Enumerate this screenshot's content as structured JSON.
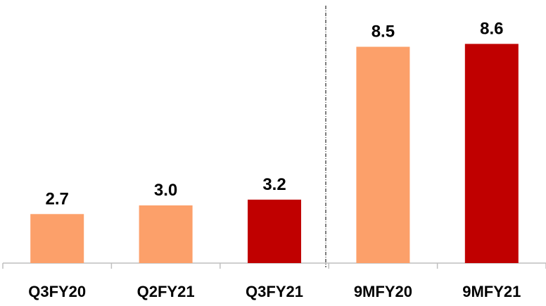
{
  "chart_data": {
    "type": "bar",
    "categories": [
      "Q3FY20",
      "Q2FY21",
      "Q3FY21",
      "9MFY20",
      "9MFY21"
    ],
    "values": [
      2.7,
      3.0,
      3.2,
      8.5,
      8.6
    ],
    "value_labels": [
      "2.7",
      "3.0",
      "3.2",
      "8.5",
      "8.6"
    ],
    "colors": [
      "#fca06a",
      "#fca06a",
      "#c00000",
      "#fca06a",
      "#c00000"
    ],
    "ylim": [
      1,
      10
    ]
  }
}
